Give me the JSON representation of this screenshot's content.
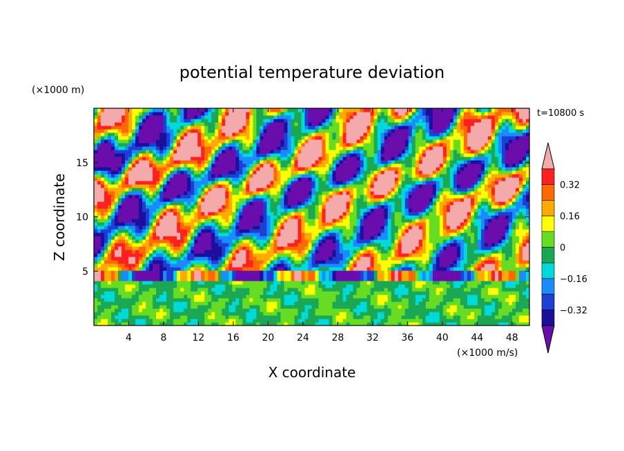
{
  "chart_data": {
    "type": "heatmap",
    "title": "potential temperature deviation",
    "time_label": "t=10800 s",
    "xlabel": "X coordinate",
    "ylabel": "Z coordinate",
    "x_unit": "(×1000 m/s)",
    "y_unit": "(×1000 m)",
    "xlim": [
      0,
      50
    ],
    "ylim": [
      0,
      20
    ],
    "x_ticks": [
      4,
      8,
      12,
      16,
      20,
      24,
      28,
      32,
      36,
      40,
      44,
      48
    ],
    "y_ticks": [
      5,
      10,
      15
    ],
    "colorbar": {
      "levels": [
        -0.4,
        -0.32,
        -0.24,
        -0.16,
        -0.08,
        0,
        0.08,
        0.16,
        0.24,
        0.32,
        0.4
      ],
      "tick_labels": [
        "0.32",
        "0.16",
        "0",
        "−0.16",
        "−0.32"
      ],
      "tick_values": [
        0.32,
        0.16,
        0,
        -0.16,
        -0.32
      ],
      "colors": [
        "#6a0dad",
        "#1c0f9c",
        "#1c3fd4",
        "#1a8cff",
        "#00d9d9",
        "#1aa854",
        "#66dd22",
        "#ffff00",
        "#ffaa00",
        "#ff6a00",
        "#ff2020",
        "#f4aaaa"
      ]
    }
  }
}
